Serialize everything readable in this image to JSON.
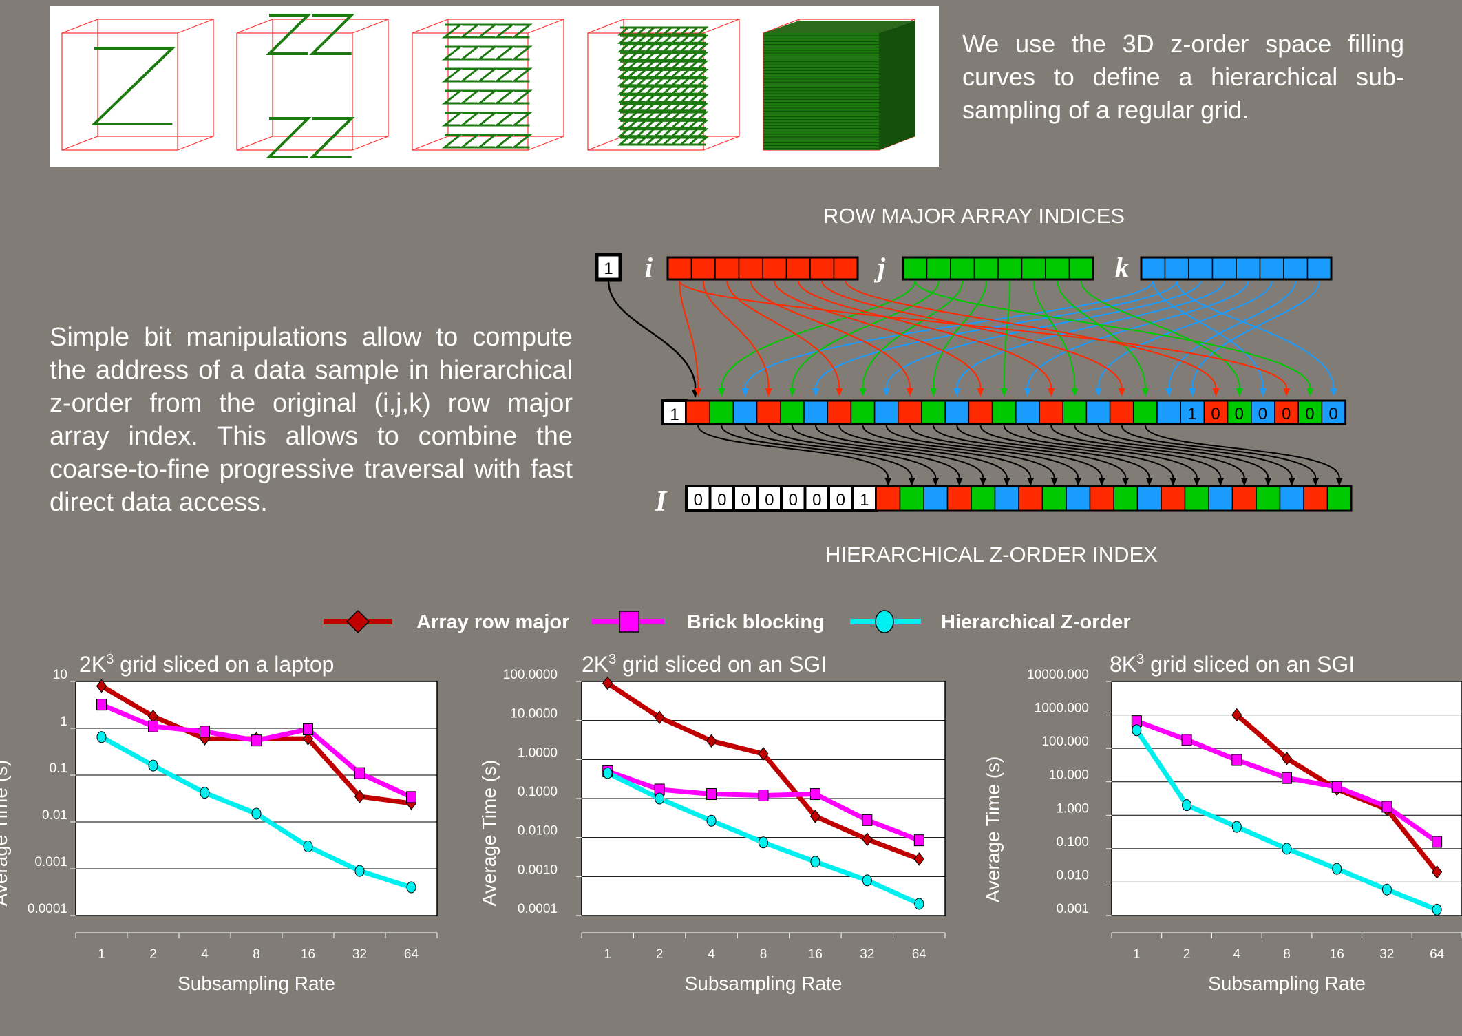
{
  "intro_text": "We use the 3D z-order space filling curves to define a hierarchical sub-sampling of a  regular grid.",
  "bit_text": "Simple bit manipulations allow to compute the address of a data sample in hierarchical z-order from the original (i,j,k) row major array index.  This allows to combine the coarse-to-fine progressive traversal with fast direct data access.",
  "diagram": {
    "top_caption": "ROW MAJOR ARRAY INDICES",
    "bottom_caption": "HIERARCHICAL Z-ORDER INDEX",
    "lead_bit": "1",
    "label_i": "i",
    "label_j": "j",
    "label_k": "k",
    "label_I": "I",
    "middle_tail_bits": [
      "1",
      "0",
      "0",
      "0",
      "0",
      "0",
      "0"
    ],
    "bottom_head_bits": [
      "0",
      "0",
      "0",
      "0",
      "0",
      "0",
      "0",
      "1"
    ],
    "colors": {
      "i": "#ff2a00",
      "j": "#00c800",
      "k": "#1a9cff"
    }
  },
  "legend": {
    "items": [
      {
        "label": "Array row major",
        "color": "#c00000",
        "marker": "diamond"
      },
      {
        "label": "Brick blocking",
        "color": "#ff00ff",
        "marker": "square"
      },
      {
        "label": "Hierarchical Z-order",
        "color": "#00f0f0",
        "marker": "circle"
      }
    ]
  },
  "chart_data": [
    {
      "type": "line",
      "title_base": "2K",
      "title_sup": "3",
      "title_rest": " grid sliced on a laptop",
      "xlabel": "Subsampling Rate",
      "ylabel": "Average Time (s)",
      "yscale": "log",
      "ylim": [
        0.0001,
        10
      ],
      "yticks": [
        "10",
        "1",
        "0.1",
        "0.01",
        "0.001",
        "0.0001"
      ],
      "categories": [
        "1",
        "2",
        "4",
        "8",
        "16",
        "32",
        "64"
      ],
      "series": [
        {
          "name": "Array row major",
          "values": [
            8,
            1.8,
            0.6,
            0.6,
            0.6,
            0.035,
            0.025
          ]
        },
        {
          "name": "Brick blocking",
          "values": [
            3.2,
            1.1,
            0.85,
            0.55,
            0.95,
            0.11,
            0.034
          ]
        },
        {
          "name": "Hierarchical Z-order",
          "values": [
            0.65,
            0.16,
            0.042,
            0.015,
            0.003,
            0.0009,
            0.0004
          ]
        }
      ]
    },
    {
      "type": "line",
      "title_base": "2K",
      "title_sup": "3",
      "title_rest": " grid sliced on an SGI",
      "xlabel": "Subsampling Rate",
      "ylabel": "Average Time (s)",
      "yscale": "log",
      "ylim": [
        0.0001,
        100
      ],
      "yticks": [
        "100.0000",
        "10.0000",
        "1.0000",
        "0.1000",
        "0.0100",
        "0.0010",
        "0.0001"
      ],
      "categories": [
        "1",
        "2",
        "4",
        "8",
        "16",
        "32",
        "64"
      ],
      "series": [
        {
          "name": "Array row major",
          "values": [
            90,
            12,
            3,
            1.4,
            0.035,
            0.009,
            0.0028
          ]
        },
        {
          "name": "Brick blocking",
          "values": [
            0.5,
            0.17,
            0.13,
            0.12,
            0.13,
            0.028,
            0.0085
          ]
        },
        {
          "name": "Hierarchical Z-order",
          "values": [
            0.45,
            0.1,
            0.027,
            0.0075,
            0.0024,
            0.0008,
            0.0002
          ]
        }
      ]
    },
    {
      "type": "line",
      "title_base": "8K",
      "title_sup": "3",
      "title_rest": " grid sliced on an SGI",
      "xlabel": "Subsampling Rate",
      "ylabel": "Average Time (s)",
      "yscale": "log",
      "ylim": [
        0.001,
        10000
      ],
      "yticks": [
        "10000.000",
        "1000.000",
        "100.000",
        "10.000",
        "1.000",
        "0.100",
        "0.010",
        "0.001"
      ],
      "categories": [
        "1",
        "2",
        "4",
        "8",
        "16",
        "32",
        "64"
      ],
      "series": [
        {
          "name": "Array row major",
          "values": [
            null,
            null,
            1000,
            50,
            6,
            1.5,
            0.02
          ]
        },
        {
          "name": "Brick blocking",
          "values": [
            650,
            180,
            45,
            13,
            7,
            1.8,
            0.16
          ]
        },
        {
          "name": "Hierarchical Z-order",
          "values": [
            350,
            2,
            0.45,
            0.1,
            0.025,
            0.006,
            0.0015
          ]
        }
      ]
    }
  ]
}
